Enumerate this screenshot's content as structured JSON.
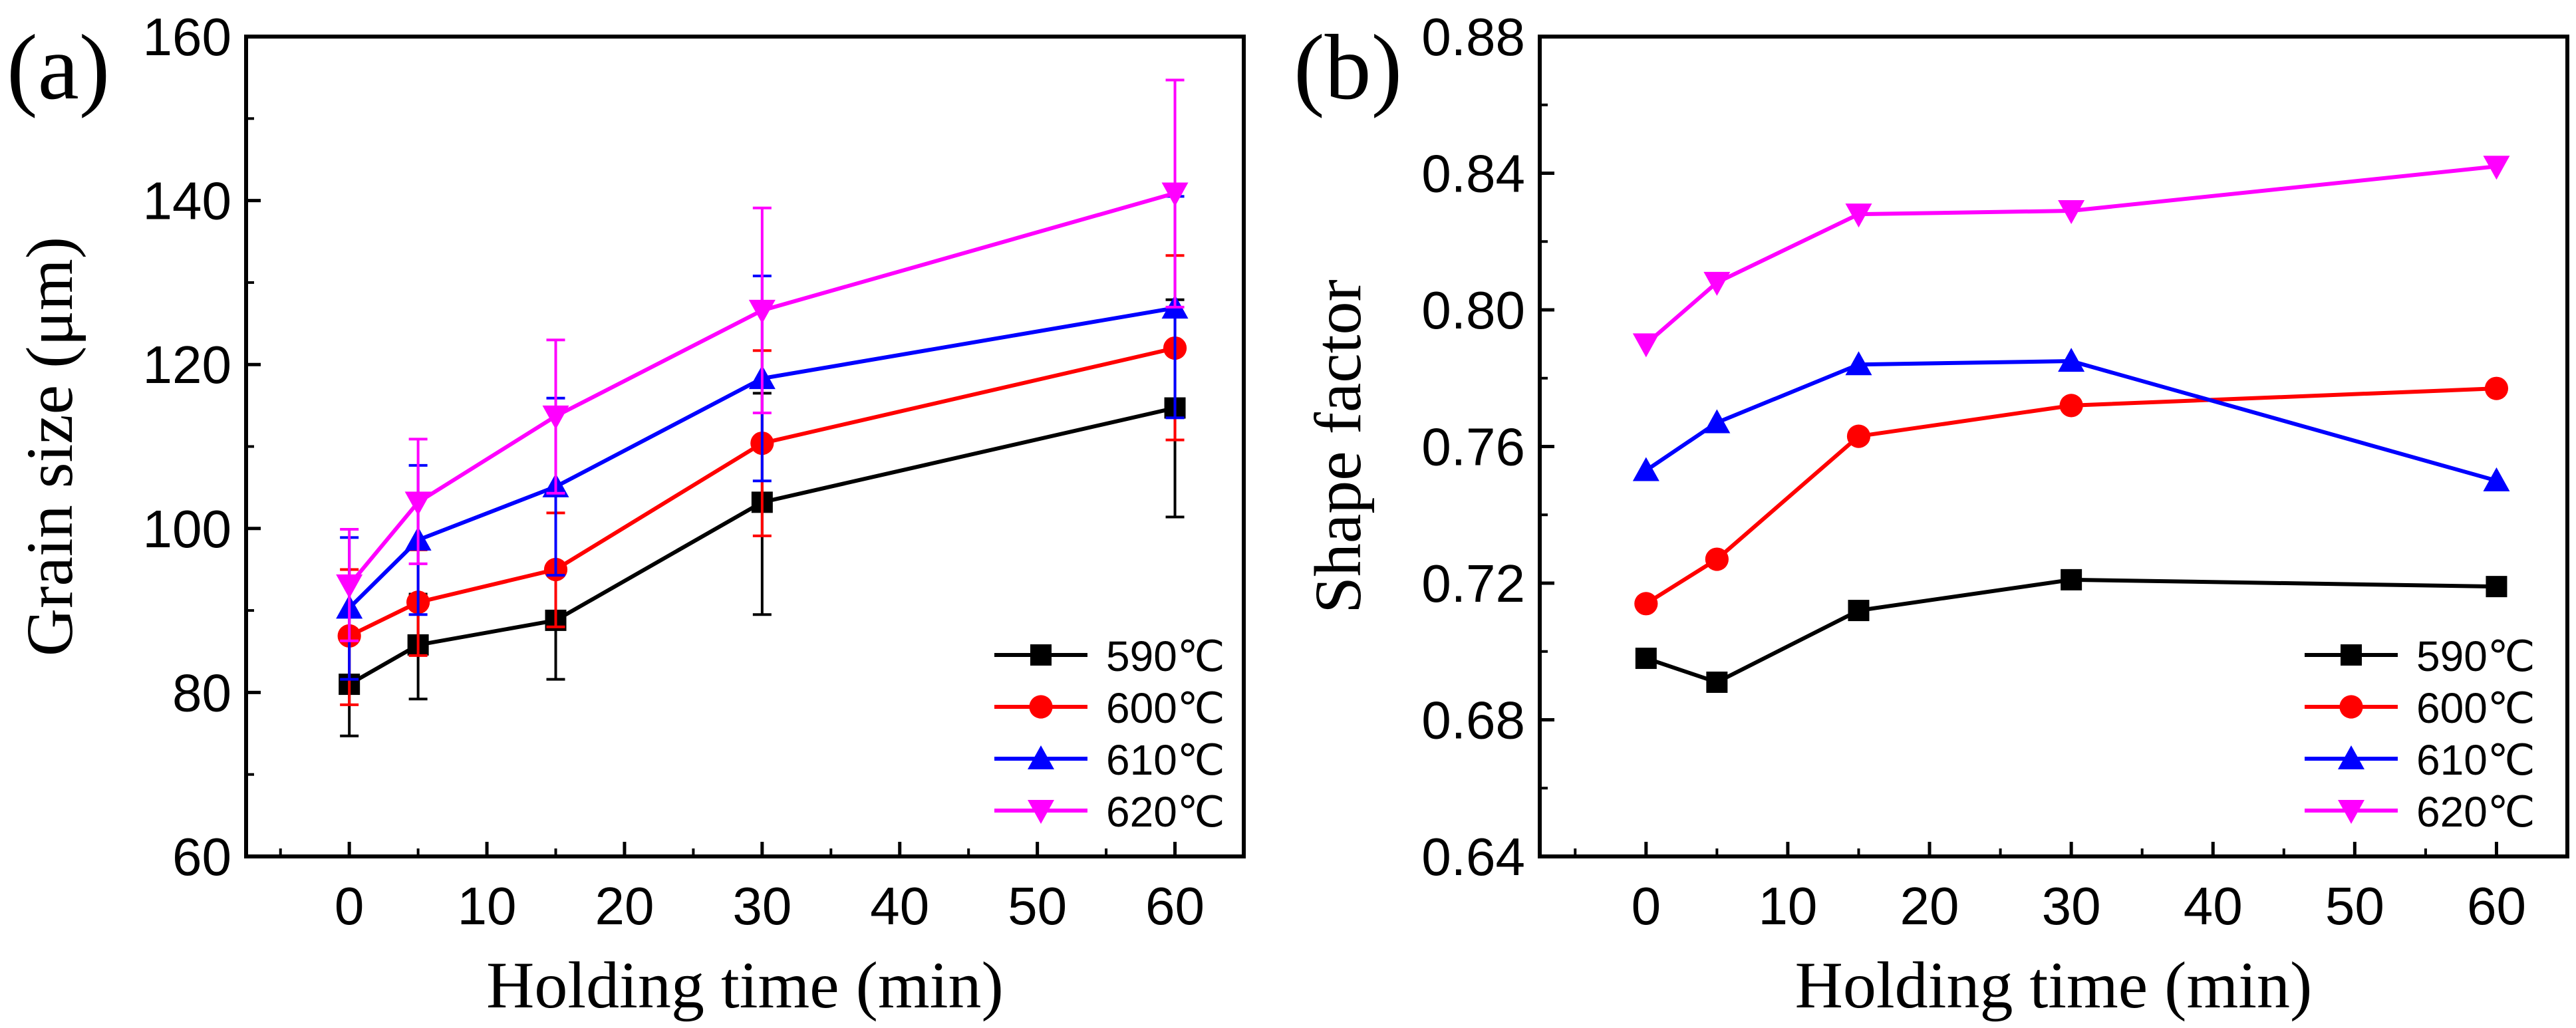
{
  "chart_data": [
    {
      "panel_label": "(a)",
      "type": "line",
      "xlabel": "Holding time (min)",
      "ylabel": "Grain size (μm)",
      "xlim": [
        -7.5,
        65
      ],
      "ylim": [
        60,
        160
      ],
      "xticks": [
        0,
        10,
        20,
        30,
        40,
        50,
        60
      ],
      "yticks": [
        60,
        80,
        100,
        120,
        140,
        160
      ],
      "x": [
        0,
        5,
        15,
        30,
        60
      ],
      "legend_position": "bottom-right",
      "grid": false,
      "series": [
        {
          "name": "590℃",
          "color": "#000000",
          "marker": "square",
          "values": [
            81.0,
            85.8,
            88.8,
            103.2,
            114.7
          ],
          "err_low": [
            74.7,
            79.2,
            81.6,
            89.5,
            101.4
          ],
          "err_high": [
            86.8,
            92.0,
            95.2,
            116.5,
            127.9
          ]
        },
        {
          "name": "600℃",
          "color": "#ff0000",
          "marker": "circle",
          "values": [
            86.9,
            91.0,
            95.0,
            110.4,
            122.0
          ],
          "err_low": [
            78.5,
            84.5,
            88.0,
            99.1,
            110.8
          ],
          "err_high": [
            95.0,
            97.4,
            101.9,
            121.7,
            133.3
          ]
        },
        {
          "name": "610℃",
          "color": "#0000ff",
          "marker": "triangle-up",
          "values": [
            90.3,
            98.6,
            105.1,
            118.3,
            126.9
          ],
          "err_low": [
            81.6,
            89.5,
            94.3,
            105.8,
            113.5
          ],
          "err_high": [
            98.9,
            107.7,
            115.9,
            130.8,
            140.5
          ]
        },
        {
          "name": "620℃",
          "color": "#ff00ff",
          "marker": "triangle-down",
          "values": [
            93.1,
            103.2,
            113.7,
            126.6,
            140.9
          ],
          "err_low": [
            86.3,
            95.7,
            104.3,
            114.1,
            127.0
          ],
          "err_high": [
            99.9,
            110.9,
            123.0,
            139.1,
            154.7
          ]
        }
      ]
    },
    {
      "panel_label": "(b)",
      "type": "line",
      "xlabel": "Holding time (min)",
      "ylabel": "Shape factor",
      "xlim": [
        -7.5,
        65
      ],
      "ylim": [
        0.64,
        0.88
      ],
      "xticks": [
        0,
        10,
        20,
        30,
        40,
        50,
        60
      ],
      "yticks": [
        0.64,
        0.68,
        0.72,
        0.76,
        0.8,
        0.84,
        0.88
      ],
      "ytick_labels": [
        "0.64",
        "0.68",
        "0.72",
        "0.76",
        "0.80",
        "0.84",
        "0.88"
      ],
      "x": [
        0,
        5,
        15,
        30,
        60
      ],
      "legend_position": "bottom-right",
      "grid": false,
      "series": [
        {
          "name": "590℃",
          "color": "#000000",
          "marker": "square",
          "values": [
            0.698,
            0.691,
            0.712,
            0.721,
            0.719
          ]
        },
        {
          "name": "600℃",
          "color": "#ff0000",
          "marker": "circle",
          "values": [
            0.714,
            0.727,
            0.763,
            0.772,
            0.777
          ]
        },
        {
          "name": "610℃",
          "color": "#0000ff",
          "marker": "triangle-up",
          "values": [
            0.753,
            0.767,
            0.784,
            0.785,
            0.75
          ]
        },
        {
          "name": "620℃",
          "color": "#ff00ff",
          "marker": "triangle-down",
          "values": [
            0.79,
            0.808,
            0.828,
            0.829,
            0.842
          ]
        }
      ]
    }
  ]
}
